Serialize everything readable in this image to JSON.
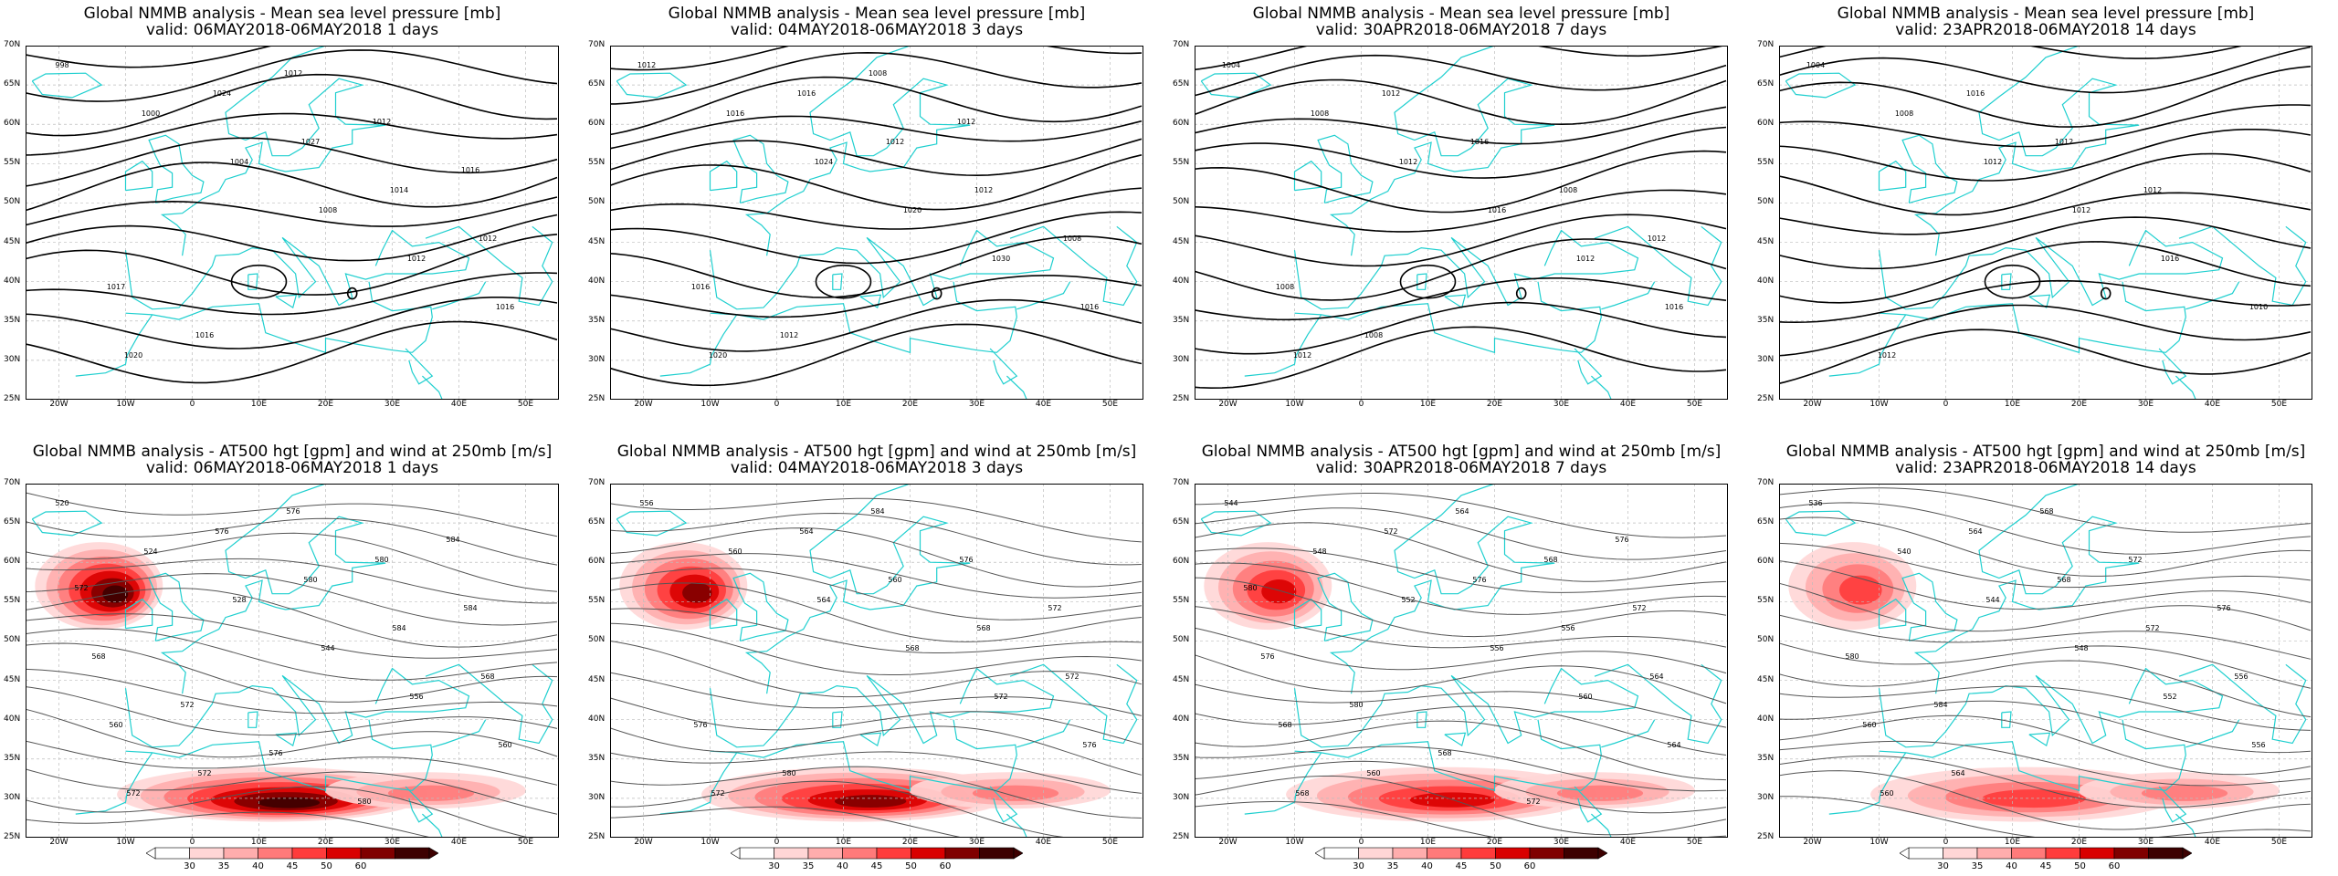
{
  "panels": [
    {
      "id": "mslp-1",
      "t1": "Global NMMB analysis - Mean sea level pressure [mb]",
      "t2": "valid: 06MAY2018-06MAY2018   1 days",
      "kind": "mslp",
      "labels": [
        "998",
        "1000",
        "1004",
        "1008",
        "1012",
        "1016",
        "1020",
        "1024",
        "1027",
        "1014",
        "1012",
        "1017",
        "1016",
        "1012",
        "1012",
        "1016"
      ]
    },
    {
      "id": "mslp-3",
      "t1": "Global NMMB analysis - Mean sea level pressure [mb]",
      "t2": "valid: 04MAY2018-06MAY2018   3 days",
      "kind": "mslp",
      "labels": [
        "1012",
        "1016",
        "1024",
        "1020",
        "1030",
        "1016",
        "1020",
        "1016",
        "1012",
        "1012",
        "1008",
        "1016",
        "1012",
        "1008",
        "1012"
      ]
    },
    {
      "id": "mslp-7",
      "t1": "Global NMMB analysis - Mean sea level pressure [mb]",
      "t2": "valid: 30APR2018-06MAY2018   7 days",
      "kind": "mslp",
      "labels": [
        "1004",
        "1008",
        "1012",
        "1016",
        "1012",
        "1016",
        "1012",
        "1012",
        "1016",
        "1008",
        "1012",
        "1008",
        "1008"
      ]
    },
    {
      "id": "mslp-14",
      "t1": "Global NMMB analysis - Mean sea level pressure [mb]",
      "t2": "valid: 23APR2018-06MAY2018   14 days",
      "kind": "mslp",
      "labels": [
        "1004",
        "1008",
        "1012",
        "1012",
        "1016",
        "1010",
        "1012",
        "1016",
        "1012",
        "1012"
      ]
    },
    {
      "id": "z500-1",
      "t1": "Global NMMB analysis - AT500 hgt [gpm] and wind at 250mb [m/s]",
      "t2": "valid: 06MAY2018-06MAY2018   1 days",
      "kind": "z500",
      "labels": [
        "520",
        "524",
        "528",
        "544",
        "556",
        "560",
        "572",
        "576",
        "580",
        "584",
        "568",
        "560",
        "572",
        "576",
        "580",
        "584",
        "568",
        "572",
        "576",
        "580",
        "584",
        "572"
      ]
    },
    {
      "id": "z500-3",
      "t1": "Global NMMB analysis - AT500 hgt [gpm] and wind at 250mb [m/s]",
      "t2": "valid: 04MAY2018-06MAY2018   3 days",
      "kind": "z500",
      "labels": [
        "556",
        "560",
        "564",
        "568",
        "572",
        "576",
        "572",
        "564",
        "560",
        "568",
        "572",
        "576",
        "580",
        "584",
        "576",
        "572"
      ]
    },
    {
      "id": "z500-7",
      "t1": "Global NMMB analysis - AT500 hgt [gpm] and wind at 250mb [m/s]",
      "t2": "valid: 30APR2018-06MAY2018   7 days",
      "kind": "z500",
      "labels": [
        "544",
        "548",
        "552",
        "556",
        "560",
        "564",
        "568",
        "572",
        "576",
        "556",
        "564",
        "568",
        "560",
        "564",
        "568",
        "572",
        "576",
        "580",
        "568",
        "572",
        "576",
        "580"
      ]
    },
    {
      "id": "z500-14",
      "t1": "Global NMMB analysis - AT500 hgt [gpm] and wind at 250mb [m/s]",
      "t2": "valid: 23APR2018-06MAY2018   14 days",
      "kind": "z500",
      "labels": [
        "536",
        "540",
        "544",
        "548",
        "552",
        "556",
        "560",
        "564",
        "568",
        "572",
        "556",
        "560",
        "564",
        "568",
        "572",
        "576",
        "580",
        "584"
      ]
    }
  ],
  "lat_labels": [
    "70N",
    "65N",
    "60N",
    "55N",
    "50N",
    "45N",
    "40N",
    "35N",
    "30N",
    "25N"
  ],
  "lon_labels": [
    "20W",
    "10W",
    "0",
    "10E",
    "20E",
    "30E",
    "40E",
    "50E"
  ],
  "colorbar": {
    "ticks": [
      "30",
      "35",
      "40",
      "45",
      "50",
      "60"
    ],
    "colors": [
      "#ffffff",
      "#ffd6d6",
      "#ffadad",
      "#ff7a7a",
      "#ff3b3b",
      "#d90000",
      "#800000",
      "#3d0000"
    ]
  },
  "colors": {
    "coast": "#1fcfcf",
    "isobar": "#000000",
    "height": "#555555",
    "grid": "#bdbdbd"
  }
}
